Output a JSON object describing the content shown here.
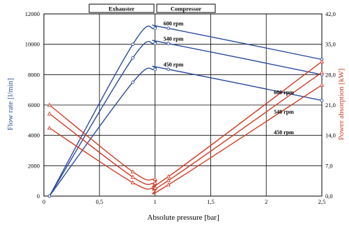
{
  "chart_data": {
    "type": "line",
    "xlabel": "Absolute pressure [bar]",
    "ylabel_left": "Flow rate [l/min]",
    "ylabel_right": "Power absorption [kW]",
    "xlim": [
      0,
      2.5
    ],
    "ylim_left": [
      0,
      12000
    ],
    "ylim_right": [
      0,
      42
    ],
    "x_ticks": [
      {
        "v": 0,
        "label": "0"
      },
      {
        "v": 0.5,
        "label": "0,5"
      },
      {
        "v": 1,
        "label": "1"
      },
      {
        "v": 1.5,
        "label": "1,5"
      },
      {
        "v": 2,
        "label": "2"
      },
      {
        "v": 2.5,
        "label": "2,5"
      }
    ],
    "y_ticks_left": [
      {
        "v": 0,
        "label": "0"
      },
      {
        "v": 2000,
        "label": "2000"
      },
      {
        "v": 4000,
        "label": "4000"
      },
      {
        "v": 6000,
        "label": "6000"
      },
      {
        "v": 8000,
        "label": "8000"
      },
      {
        "v": 10000,
        "label": "10000"
      },
      {
        "v": 12000,
        "label": "12000"
      }
    ],
    "y_ticks_right": [
      {
        "v": 0,
        "label": "0,0"
      },
      {
        "v": 7,
        "label": "7,0"
      },
      {
        "v": 14,
        "label": "14,0"
      },
      {
        "v": 21,
        "label": "21,0"
      },
      {
        "v": 28,
        "label": "28,0"
      },
      {
        "v": 35,
        "label": "35,0"
      },
      {
        "v": 42,
        "label": "42,0"
      }
    ],
    "section_labels": {
      "left": "Exhauster",
      "right": "Compressor"
    },
    "grid": true,
    "colors": {
      "flow": "#2b4a9c",
      "power": "#d23a22",
      "grid": "#000000"
    },
    "flow_series": [
      {
        "name": "600 rpm",
        "x": [
          0.05,
          0.8,
          1.0,
          1.12,
          2.5
        ],
        "y": [
          0,
          10000,
          11050,
          11050,
          9000
        ]
      },
      {
        "name": "540 rpm",
        "x": [
          0.05,
          0.8,
          1.0,
          1.12,
          2.5
        ],
        "y": [
          0,
          9100,
          10050,
          10050,
          8000
        ]
      },
      {
        "name": "450 rpm",
        "x": [
          0.05,
          0.8,
          1.0,
          1.12,
          2.5
        ],
        "y": [
          0,
          7500,
          8350,
          8350,
          6300
        ]
      }
    ],
    "power_series": [
      {
        "name": "600 rpm",
        "x": [
          0.05,
          0.8,
          1.0,
          1.12,
          2.5
        ],
        "y": [
          21,
          5.6,
          3.9,
          4.5,
          31
        ]
      },
      {
        "name": "540 rpm",
        "x": [
          0.05,
          0.8,
          1.0,
          1.12,
          2.5
        ],
        "y": [
          19,
          4.4,
          3.0,
          3.6,
          28.5
        ]
      },
      {
        "name": "450 rpm",
        "x": [
          0.05,
          0.8,
          1.0,
          1.12,
          2.5
        ],
        "y": [
          15.7,
          3.1,
          1.9,
          2.6,
          25.6
        ]
      }
    ]
  }
}
